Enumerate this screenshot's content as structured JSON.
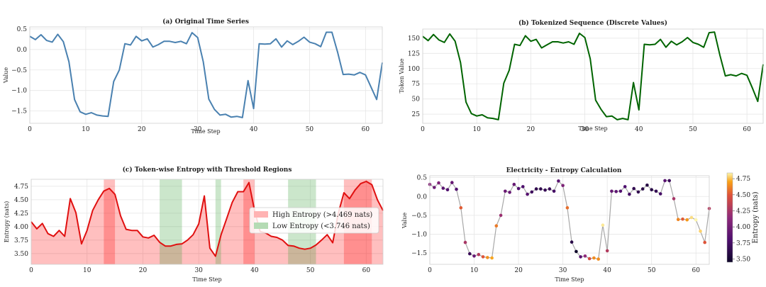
{
  "chart_data": [
    {
      "type": "line",
      "title": "(a) Original Time Series",
      "xlabel": "Time Step",
      "ylabel": "Value",
      "xlim": [
        0,
        63
      ],
      "ylim": [
        -1.8,
        0.55
      ],
      "xticks": [
        0,
        10,
        20,
        30,
        40,
        50,
        60
      ],
      "yticks": [
        -1.5,
        -1.0,
        -0.5,
        0.0,
        0.5
      ],
      "ytick_labels": [
        "−1.5",
        "−1.0",
        "−0.5",
        "0.0",
        "0.5"
      ],
      "color": "#4a81b0",
      "series": [
        {
          "name": "value",
          "values": [
            0.32,
            0.24,
            0.36,
            0.22,
            0.18,
            0.37,
            0.19,
            -0.3,
            -1.22,
            -1.52,
            -1.58,
            -1.54,
            -1.6,
            -1.62,
            -1.63,
            -0.78,
            -0.5,
            0.14,
            0.11,
            0.32,
            0.21,
            0.26,
            0.06,
            0.12,
            0.2,
            0.2,
            0.17,
            0.2,
            0.14,
            0.41,
            0.29,
            -0.3,
            -1.21,
            -1.46,
            -1.6,
            -1.58,
            -1.65,
            -1.63,
            -1.66,
            -0.76,
            -1.44,
            0.14,
            0.13,
            0.14,
            0.26,
            0.06,
            0.21,
            0.12,
            0.2,
            0.3,
            0.18,
            0.14,
            0.07,
            0.42,
            0.42,
            -0.06,
            -0.61,
            -0.6,
            -0.62,
            -0.56,
            -0.62,
            -0.92,
            -1.22,
            -0.32
          ]
        }
      ]
    },
    {
      "type": "line",
      "title": "(b) Tokenized Sequence (Discrete Values)",
      "xlabel": "Time Step",
      "ylabel": "Token Value",
      "xlim": [
        0,
        63
      ],
      "ylim": [
        10,
        165
      ],
      "xticks": [
        0,
        10,
        20,
        30,
        40,
        50,
        60
      ],
      "yticks": [
        25,
        50,
        75,
        100,
        125,
        150
      ],
      "ytick_labels": [
        "25",
        "50",
        "75",
        "100",
        "125",
        "150"
      ],
      "color": "#006400",
      "series": [
        {
          "name": "token",
          "values": [
            153,
            146,
            156,
            147,
            143,
            157,
            145,
            110,
            45,
            26,
            22,
            24,
            19,
            18,
            16,
            76,
            97,
            140,
            138,
            154,
            145,
            148,
            134,
            139,
            144,
            144,
            142,
            144,
            140,
            158,
            151,
            116,
            48,
            33,
            21,
            22,
            16,
            18,
            16,
            77,
            32,
            140,
            139,
            140,
            148,
            135,
            145,
            139,
            144,
            151,
            143,
            140,
            135,
            159,
            160,
            122,
            88,
            90,
            88,
            92,
            89,
            68,
            46,
            107
          ]
        }
      ]
    },
    {
      "type": "area",
      "title": "(c) Token-wise Entropy with Threshold Regions",
      "xlabel": "Time Step",
      "ylabel": "Entropy (nats)",
      "xlim": [
        0,
        63
      ],
      "ylim": [
        3.3,
        4.88
      ],
      "xticks": [
        0,
        10,
        20,
        30,
        40,
        50,
        60
      ],
      "yticks": [
        3.5,
        3.75,
        4.0,
        4.25,
        4.5,
        4.75
      ],
      "ytick_labels": [
        "3.50",
        "3.75",
        "4.00",
        "4.25",
        "4.50",
        "4.75"
      ],
      "thresholds": {
        "high": 4.469,
        "low": 3.746
      },
      "legend": [
        "High Entropy (>4.469 nats)",
        "Low Entropy (<3.746 nats)"
      ],
      "legend_position": "center-right",
      "high_regions": [
        [
          13,
          15
        ],
        [
          38,
          40
        ],
        [
          56,
          61
        ]
      ],
      "low_regions": [
        [
          23,
          27
        ],
        [
          33,
          34
        ],
        [
          46,
          51
        ]
      ],
      "series": [
        {
          "name": "entropy",
          "values": [
            4.09,
            3.96,
            4.06,
            3.87,
            3.82,
            3.93,
            3.82,
            4.52,
            4.26,
            3.68,
            3.93,
            4.3,
            4.5,
            4.66,
            4.71,
            4.6,
            4.2,
            3.95,
            3.93,
            3.93,
            3.81,
            3.79,
            3.84,
            3.71,
            3.64,
            3.64,
            3.67,
            3.68,
            3.75,
            3.85,
            4.05,
            4.57,
            3.6,
            3.45,
            3.85,
            4.15,
            4.45,
            4.65,
            4.65,
            4.82,
            4.3,
            3.91,
            3.88,
            3.82,
            3.8,
            3.75,
            3.65,
            3.64,
            3.6,
            3.58,
            3.6,
            3.66,
            3.75,
            3.85,
            3.7,
            4.25,
            4.63,
            4.52,
            4.68,
            4.8,
            4.84,
            4.78,
            4.5,
            4.3
          ]
        }
      ]
    },
    {
      "type": "scatter",
      "title": "Electricity - Entropy Calculation",
      "xlabel": "Time Step",
      "ylabel": "Value",
      "xlim": [
        0,
        63
      ],
      "ylim": [
        -1.8,
        0.55
      ],
      "xticks": [
        0,
        10,
        20,
        30,
        40,
        50,
        60
      ],
      "yticks": [
        -1.5,
        -1.0,
        -0.5,
        0.0,
        0.5
      ],
      "ytick_labels": [
        "−1.5",
        "−1.0",
        "−0.5",
        "0.0",
        "0.5"
      ],
      "colorbar": {
        "label": "Entropy (nats)",
        "range": [
          3.45,
          4.84
        ],
        "ticks": [
          "3.50",
          "3.75",
          "4.00",
          "4.25",
          "4.50",
          "4.75"
        ],
        "tick_values": [
          3.5,
          3.75,
          4.0,
          4.25,
          4.5,
          4.75
        ]
      },
      "color_by": "entropy of panel (c)"
    }
  ]
}
